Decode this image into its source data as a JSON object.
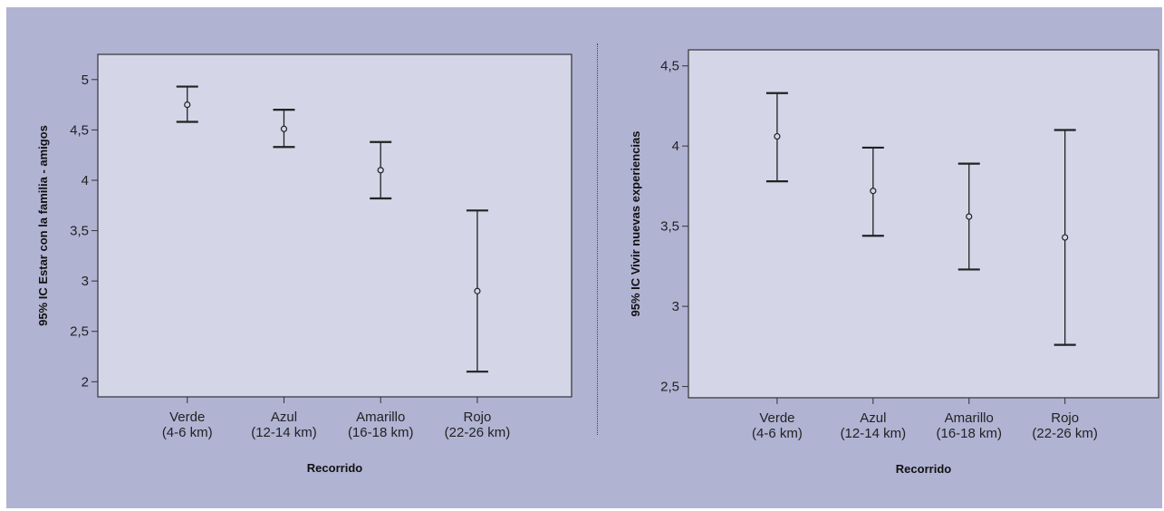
{
  "colors": {
    "figure_background": "#b1b3d3",
    "plot_background": "#d4d6e8",
    "ink": "#222222"
  },
  "chart_data": [
    {
      "type": "errorbar",
      "xlabel": "Recorrido",
      "ylabel": "95% IC Estar con la familia - amigos",
      "categories": [
        "Verde\n(4-6 km)",
        "Azul\n(12-14 km)",
        "Amarillo\n(16-18 km)",
        "Rojo\n(22-26 km)"
      ],
      "series": [
        {
          "mean": [
            4.75,
            4.51,
            4.1,
            2.9
          ],
          "lower": [
            4.58,
            4.33,
            3.82,
            2.1
          ],
          "upper": [
            4.93,
            4.7,
            4.38,
            3.7
          ]
        }
      ],
      "ylim": [
        1.85,
        5.25
      ],
      "yticks": [
        2,
        2.5,
        3,
        3.5,
        4,
        4.5,
        5
      ],
      "ytick_labels": [
        "2",
        "2,5",
        "3",
        "3,5",
        "4",
        "4,5",
        "5"
      ],
      "grid": false
    },
    {
      "type": "errorbar",
      "xlabel": "Recorrido",
      "ylabel": "95% IC Vivir nuevas experiencias",
      "categories": [
        "Verde\n(4-6 km)",
        "Azul\n(12-14 km)",
        "Amarillo\n(16-18 km)",
        "Rojo\n(22-26 km)"
      ],
      "series": [
        {
          "mean": [
            4.06,
            3.72,
            3.56,
            3.43
          ],
          "lower": [
            3.78,
            3.44,
            3.23,
            2.76
          ],
          "upper": [
            4.33,
            3.99,
            3.89,
            4.1
          ]
        }
      ],
      "ylim": [
        2.43,
        4.6
      ],
      "yticks": [
        2.5,
        3,
        3.5,
        4,
        4.5
      ],
      "ytick_labels": [
        "2,5",
        "3",
        "3,5",
        "4",
        "4,5"
      ],
      "grid": false
    }
  ]
}
